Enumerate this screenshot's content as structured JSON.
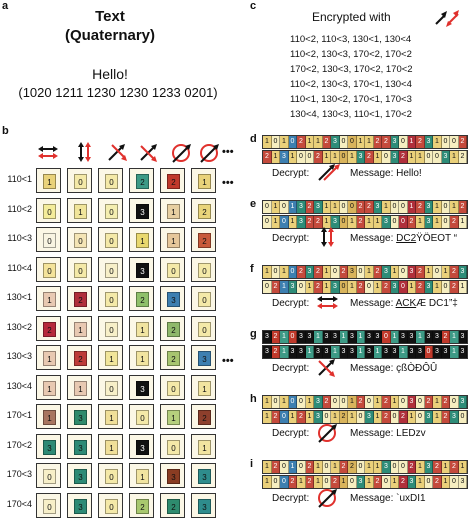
{
  "panel_a": {
    "label": "a",
    "title_line1": "Text",
    "title_line2": "(Quaternary)",
    "message": "Hello!",
    "quaternary": "(1020 1211 1230 1230 1233 0201)"
  },
  "panel_c": {
    "label": "c",
    "heading": "Encrypted with",
    "lines": [
      "110<2, 110<3, 130<1, 130<4",
      "110<2, 130<3, 170<2, 170<2",
      "170<2, 130<3, 170<2, 170<2",
      "110<2, 130<3, 170<1, 130<4",
      "110<1, 130<2, 170<1, 170<3",
      "130<4, 130<3, 110<1, 170<2"
    ]
  },
  "panel_b": {
    "label": "b",
    "ellipsis": "•••",
    "row_labels": [
      "110<1",
      "110<2",
      "110<3",
      "110<4",
      "130<1",
      "130<2",
      "130<3",
      "130<4",
      "170<1",
      "170<2",
      "170<3",
      "170<4"
    ],
    "cells": [
      [
        {
          "v": "1",
          "c": "#e9d27a"
        },
        {
          "v": "0",
          "c": "#f4e9a8"
        },
        {
          "v": "0",
          "c": "#f4e9a8"
        },
        {
          "v": "2",
          "c": "#3d9a86"
        },
        {
          "v": "2",
          "c": "#c0392b"
        },
        {
          "v": "1",
          "c": "#e9d27a"
        }
      ],
      [
        {
          "v": "0",
          "c": "#f4ec9a"
        },
        {
          "v": "1",
          "c": "#f1e59a"
        },
        {
          "v": "0",
          "c": "#f4eeb0"
        },
        {
          "v": "3",
          "c": "#111111"
        },
        {
          "v": "1",
          "c": "#e7cfa1"
        },
        {
          "v": "2",
          "c": "#e9d47a"
        }
      ],
      [
        {
          "v": "0",
          "c": "#f8f4e2"
        },
        {
          "v": "0",
          "c": "#f4e5b5"
        },
        {
          "v": "0",
          "c": "#f4e9a8"
        },
        {
          "v": "1",
          "c": "#e9d86e"
        },
        {
          "v": "1",
          "c": "#e6c79a"
        },
        {
          "v": "2",
          "c": "#c85a3a"
        }
      ],
      [
        {
          "v": "0",
          "c": "#f4e39a"
        },
        {
          "v": "0",
          "c": "#f4e9a8"
        },
        {
          "v": "0",
          "c": "#f7efc8"
        },
        {
          "v": "3",
          "c": "#111111"
        },
        {
          "v": "0",
          "c": "#f4e9a8"
        },
        {
          "v": "0",
          "c": "#f4e9a8"
        }
      ],
      [
        {
          "v": "1",
          "c": "#e8c9b2"
        },
        {
          "v": "2",
          "c": "#b02f3b"
        },
        {
          "v": "0",
          "c": "#f4e9a8"
        },
        {
          "v": "2",
          "c": "#8fc06a"
        },
        {
          "v": "3",
          "c": "#3d7fb0"
        },
        {
          "v": "0",
          "c": "#f4e9a8"
        }
      ],
      [
        {
          "v": "2",
          "c": "#b6283b"
        },
        {
          "v": "1",
          "c": "#e8c9b2"
        },
        {
          "v": "0",
          "c": "#f7efc8"
        },
        {
          "v": "1",
          "c": "#f1e4a0"
        },
        {
          "v": "2",
          "c": "#8fb86a"
        },
        {
          "v": "0",
          "c": "#f4e9a8"
        }
      ],
      [
        {
          "v": "1",
          "c": "#e8c9b2"
        },
        {
          "v": "2",
          "c": "#bd3b38"
        },
        {
          "v": "1",
          "c": "#f1e59a"
        },
        {
          "v": "1",
          "c": "#f1e4a0"
        },
        {
          "v": "2",
          "c": "#a7c56f"
        },
        {
          "v": "3",
          "c": "#3d7fb0"
        }
      ],
      [
        {
          "v": "1",
          "c": "#e8c9b2"
        },
        {
          "v": "1",
          "c": "#e8c9b2"
        },
        {
          "v": "0",
          "c": "#f7efc8"
        },
        {
          "v": "3",
          "c": "#111111"
        },
        {
          "v": "0",
          "c": "#f4e9a8"
        },
        {
          "v": "1",
          "c": "#f1e4a0"
        }
      ],
      [
        {
          "v": "1",
          "c": "#a87560"
        },
        {
          "v": "3",
          "c": "#2f8a6b"
        },
        {
          "v": "1",
          "c": "#f0df98"
        },
        {
          "v": "0",
          "c": "#f4e9a8"
        },
        {
          "v": "1",
          "c": "#b5cf7d"
        },
        {
          "v": "2",
          "c": "#8d3f2c"
        }
      ],
      [
        {
          "v": "3",
          "c": "#2d8a75"
        },
        {
          "v": "3",
          "c": "#2d8a75"
        },
        {
          "v": "1",
          "c": "#f0df98"
        },
        {
          "v": "3",
          "c": "#111111"
        },
        {
          "v": "0",
          "c": "#f4e9a8"
        },
        {
          "v": "1",
          "c": "#f1e4a0"
        }
      ],
      [
        {
          "v": "0",
          "c": "#f7efc8"
        },
        {
          "v": "3",
          "c": "#2d8a75"
        },
        {
          "v": "0",
          "c": "#f4e9a8"
        },
        {
          "v": "1",
          "c": "#f1e4a0"
        },
        {
          "v": "3",
          "c": "#8a3c22"
        },
        {
          "v": "3",
          "c": "#2e8c8c"
        }
      ],
      [
        {
          "v": "0",
          "c": "#f7efc8"
        },
        {
          "v": "3",
          "c": "#2d8a75"
        },
        {
          "v": "0",
          "c": "#f4e9a8"
        },
        {
          "v": "2",
          "c": "#a8c86e"
        },
        {
          "v": "2",
          "c": "#2e8b6e"
        },
        {
          "v": "3",
          "c": "#2e8c8c"
        }
      ]
    ]
  },
  "decrypt_panels": [
    {
      "label": "d",
      "decrypt": "Decrypt:",
      "message_prefix": "Message:",
      "message": "Hello!",
      "underlined": "",
      "suffix": "",
      "icon": "diagonal-arrows"
    },
    {
      "label": "e",
      "decrypt": "Decrypt:",
      "message_prefix": "Message:",
      "message": "",
      "underlined": "DC2",
      "suffix": "ŸÖEOT “",
      "icon": "vertical-arrows"
    },
    {
      "label": "f",
      "decrypt": "Decrypt:",
      "message_prefix": "Message:",
      "message": "",
      "underlined": "ACK",
      "suffix": "Æ DC1”‡",
      "icon": "horizontal-arrows"
    },
    {
      "label": "g",
      "decrypt": "Decrypt:",
      "message_prefix": "Message:",
      "message": "çßÒÐÔÛ",
      "underlined": "",
      "suffix": "",
      "icon": "cross-arrows"
    },
    {
      "label": "h",
      "decrypt": "Decrypt:",
      "message_prefix": "Message:",
      "message": "LEDzv",
      "underlined": "",
      "suffix": "",
      "icon": "circle-arrow"
    },
    {
      "label": "i",
      "decrypt": "Decrypt:",
      "message_prefix": "Message:",
      "message": "`uxDI1",
      "underlined": "",
      "suffix": "",
      "icon": "circle-arrow-2"
    }
  ],
  "strips": {
    "d": [
      [
        "1",
        "0",
        "1",
        "0",
        "2",
        "1",
        "1",
        "2",
        "3",
        "0",
        "0",
        "1",
        "1",
        "2",
        "2",
        "3",
        "0",
        "1",
        "2",
        "3",
        "1",
        "0",
        "0",
        "2"
      ],
      [
        "2",
        "1",
        "3",
        "1",
        "0",
        "0",
        "2",
        "1",
        "1",
        "0",
        "1",
        "3",
        "2",
        "1",
        "0",
        "3",
        "2",
        "1",
        "1",
        "0",
        "0",
        "3",
        "1",
        "2"
      ]
    ],
    "e": [
      [
        "0",
        "1",
        "0",
        "1",
        "3",
        "2",
        "3",
        "1",
        "1",
        "0",
        "0",
        "2",
        "2",
        "3",
        "1",
        "0",
        "0",
        "1",
        "2",
        "3",
        "1",
        "0",
        "1",
        "2"
      ],
      [
        "0",
        "1",
        "0",
        "1",
        "3",
        "2",
        "2",
        "1",
        "3",
        "0",
        "1",
        "2",
        "1",
        "1",
        "3",
        "0",
        "0",
        "2",
        "1",
        "3",
        "1",
        "0",
        "2",
        "1"
      ]
    ],
    "f": [
      [
        "1",
        "0",
        "1",
        "0",
        "2",
        "3",
        "2",
        "1",
        "0",
        "2",
        "3",
        "0",
        "1",
        "2",
        "3",
        "1",
        "0",
        "3",
        "2",
        "1",
        "0",
        "1",
        "2",
        "3"
      ],
      [
        "0",
        "2",
        "1",
        "3",
        "0",
        "1",
        "2",
        "1",
        "3",
        "0",
        "1",
        "2",
        "0",
        "1",
        "2",
        "3",
        "0",
        "1",
        "2",
        "3",
        "1",
        "0",
        "2",
        "1"
      ]
    ],
    "g": [
      [
        "3",
        "2",
        "1",
        "0",
        "3",
        "3",
        "1",
        "3",
        "3",
        "1",
        "3",
        "1",
        "3",
        "3",
        "0",
        "1",
        "3",
        "3",
        "1",
        "3",
        "3",
        "2",
        "1",
        "3"
      ],
      [
        "3",
        "2",
        "1",
        "3",
        "3",
        "1",
        "3",
        "3",
        "1",
        "3",
        "3",
        "1",
        "3",
        "1",
        "3",
        "3",
        "1",
        "3",
        "3",
        "0",
        "3",
        "3",
        "1",
        "3"
      ]
    ],
    "h": [
      [
        "1",
        "0",
        "1",
        "0",
        "0",
        "1",
        "3",
        "2",
        "0",
        "0",
        "1",
        "2",
        "0",
        "1",
        "2",
        "1",
        "0",
        "3",
        "0",
        "2",
        "1",
        "2",
        "0",
        "3"
      ],
      [
        "1",
        "2",
        "0",
        "1",
        "2",
        "1",
        "3",
        "0",
        "1",
        "2",
        "1",
        "0",
        "3",
        "1",
        "2",
        "0",
        "2",
        "1",
        "0",
        "3",
        "1",
        "2",
        "3",
        "0"
      ]
    ],
    "i": [
      [
        "1",
        "2",
        "0",
        "1",
        "0",
        "2",
        "1",
        "0",
        "1",
        "2",
        "2",
        "0",
        "1",
        "1",
        "3",
        "0",
        "0",
        "2",
        "1",
        "3",
        "2",
        "1",
        "2",
        "1"
      ],
      [
        "1",
        "0",
        "0",
        "2",
        "1",
        "2",
        "1",
        "0",
        "2",
        "1",
        "0",
        "3",
        "1",
        "2",
        "0",
        "1",
        "2",
        "3",
        "1",
        "0",
        "2",
        "1",
        "0",
        "3"
      ]
    ]
  },
  "colors": {
    "red": "#e0312d",
    "black": "#111111"
  }
}
